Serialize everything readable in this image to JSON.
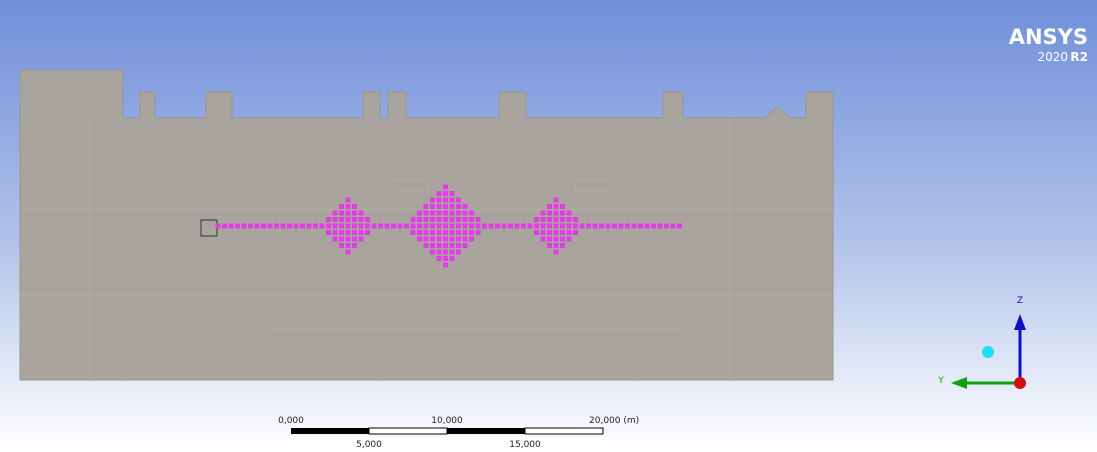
{
  "logo": {
    "name": "ANSYS",
    "version": "2020",
    "release": "R2"
  },
  "scale_bar": {
    "top_labels": [
      "0,000",
      "10,000",
      "20,000 (m)"
    ],
    "bottom_labels": [
      "5,000",
      "15,000"
    ]
  },
  "triad": {
    "z": "Z",
    "y": "Y"
  }
}
